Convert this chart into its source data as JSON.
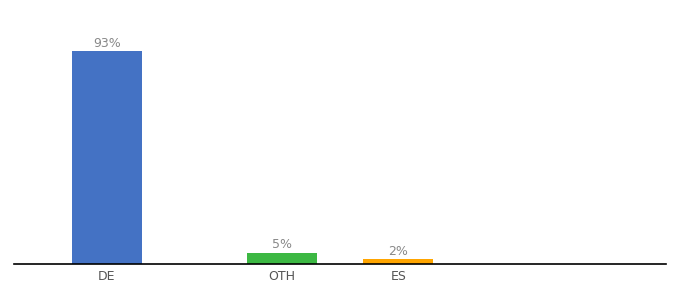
{
  "categories": [
    "DE",
    "OTH",
    "ES"
  ],
  "values": [
    93,
    5,
    2
  ],
  "bar_colors": [
    "#4472C4",
    "#3CB843",
    "#FFA500"
  ],
  "labels": [
    "93%",
    "5%",
    "2%"
  ],
  "background_color": "#ffffff",
  "ylim": [
    0,
    105
  ],
  "bar_width": 0.6,
  "label_fontsize": 9,
  "tick_fontsize": 9,
  "label_color": "#888888"
}
